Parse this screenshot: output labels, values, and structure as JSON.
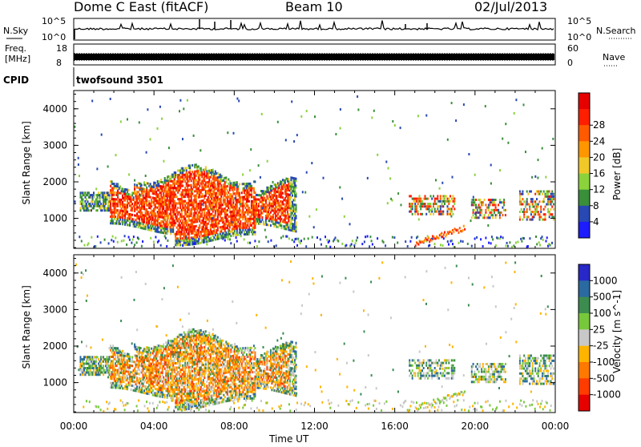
{
  "header": {
    "station": "Dome C East (fitACF)",
    "beam": "Beam 10",
    "date": "02/Jul/2013"
  },
  "strip": {
    "nsky_label": "N.Sky",
    "nsky_top": "10^5",
    "nsky_bottom": "10^0",
    "nsearch_label": "N.Search",
    "nsearch_top": "10^5",
    "nsearch_bottom": "10^0",
    "freq_label_1": "Freq.",
    "freq_label_2": "[MHz]",
    "freq_top": "18",
    "freq_bottom": "8",
    "nave_label": "Nave",
    "nave_top": "60",
    "nave_bottom": "0",
    "cpid_label": "CPID",
    "cpid_value": "twofsound 3501"
  },
  "chart_data": [
    {
      "type": "heatmap",
      "title": "",
      "xlabel": "Time UT",
      "ylabel": "Slant Range [km]",
      "xlim": [
        0,
        24
      ],
      "ylim": [
        180,
        4500
      ],
      "x_ticks": [
        "00:00",
        "04:00",
        "08:00",
        "12:00",
        "16:00",
        "20:00",
        "00:00"
      ],
      "y_ticks": [
        1000,
        2000,
        3000,
        4000
      ],
      "colorbar": {
        "label": "Power [dB]",
        "ticks": [
          "4",
          "8",
          "12",
          "16",
          "20",
          "24",
          "28"
        ],
        "colors": [
          "#1c1cff",
          "#2848b4",
          "#3a8f3a",
          "#8cd23c",
          "#f0c828",
          "#ff9600",
          "#ff5a00",
          "#ff1e00",
          "#e60000"
        ]
      },
      "echo_regions": [
        {
          "t_start": 0.2,
          "t_end": 11.0,
          "range_min": 700,
          "range_max": 2000,
          "level": "24-28 dB core 03:00-10:00"
        },
        {
          "t_start": 16.7,
          "t_end": 19.0,
          "range_min": 1100,
          "range_max": 1700,
          "level": "8-20 dB"
        },
        {
          "t_start": 17.0,
          "t_end": 19.5,
          "range_min": 200,
          "range_max": 700,
          "level": "16-28 dB"
        },
        {
          "t_start": 19.8,
          "t_end": 21.5,
          "range_min": 1000,
          "range_max": 1600,
          "level": "8-24 dB"
        },
        {
          "t_start": 22.2,
          "t_end": 24.0,
          "range_min": 1000,
          "range_max": 1800,
          "level": "8-28 dB"
        }
      ]
    },
    {
      "type": "heatmap",
      "title": "",
      "xlabel": "Time UT",
      "ylabel": "Slant Range [km]",
      "xlim": [
        0,
        24
      ],
      "ylim": [
        180,
        4500
      ],
      "x_ticks": [
        "00:00",
        "04:00",
        "08:00",
        "12:00",
        "16:00",
        "20:00",
        "00:00"
      ],
      "y_ticks": [
        1000,
        2000,
        3000,
        4000
      ],
      "colorbar": {
        "label": "Velocity [m s^-1]",
        "ticks": [
          "1000",
          "500",
          "100",
          "25",
          "-25",
          "-100",
          "-500",
          "-1000"
        ],
        "colors": [
          "#2828c8",
          "#2a6aa0",
          "#3c8c50",
          "#78c83c",
          "#c8c8c8",
          "#ffb400",
          "#ff7800",
          "#ff3c00",
          "#e60000"
        ]
      },
      "echo_regions": [
        {
          "t_start": 0.2,
          "t_end": 11.0,
          "range_min": 700,
          "range_max": 2000,
          "level": "-100 to -500 m/s"
        },
        {
          "t_start": 16.7,
          "t_end": 19.0,
          "range_min": 1000,
          "range_max": 1700,
          "level": "-25 to 100 m/s"
        },
        {
          "t_start": 19.8,
          "t_end": 21.5,
          "range_min": 1000,
          "range_max": 1600,
          "level": "25 to 100 m/s"
        },
        {
          "t_start": 22.2,
          "t_end": 24.0,
          "range_min": 1000,
          "range_max": 1800,
          "level": "-100 to 100 m/s"
        }
      ]
    }
  ]
}
